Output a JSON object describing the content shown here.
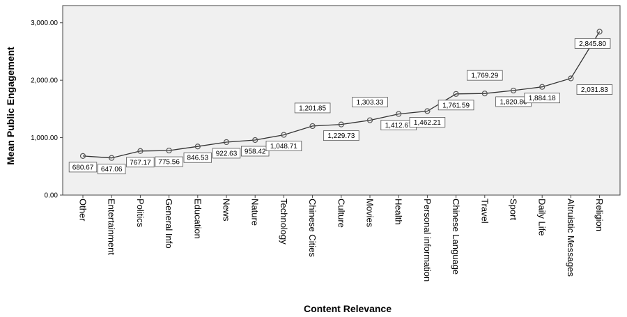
{
  "chart_data": {
    "type": "line",
    "xlabel": "Content Relevance",
    "ylabel": "Mean Public Engagement",
    "ylim": [
      0,
      3300
    ],
    "yticks": [
      0,
      1000,
      2000,
      3000
    ],
    "ytick_labels": [
      "0.00",
      "1,000.00",
      "2,000.00",
      "3,000.00"
    ],
    "grid": false,
    "colors": {
      "plot_background": "#f0f0f0",
      "line": "#333333",
      "marker": "#555555"
    },
    "categories": [
      "Other",
      "Entertainment",
      "Politics",
      "General Info",
      "Education",
      "News",
      "Nature",
      "Technology",
      "Chinese Cities",
      "Culture",
      "Movies",
      "Health",
      "Personal information",
      "Chinese Language",
      "Travel",
      "Sport",
      "Daily Life",
      "Altruistic Messages",
      "Religion"
    ],
    "values": [
      680.67,
      647.06,
      767.17,
      775.56,
      846.53,
      922.63,
      958.42,
      1048.71,
      1201.85,
      1229.73,
      1303.33,
      1412.67,
      1462.21,
      1761.59,
      1769.29,
      1820.86,
      1884.18,
      2031.83,
      2845.8
    ],
    "data_labels": [
      "680.67",
      "647.06",
      "767.17",
      "775.56",
      "846.53",
      "922.63",
      "958.42",
      "1,048.71",
      "1,201.85",
      "1,229.73",
      "1,303.33",
      "1,412.67",
      "1,462.21",
      "1,761.59",
      "1,769.29",
      "1,820.86",
      "1,884.18",
      "2,031.83",
      "2,845.80"
    ]
  }
}
